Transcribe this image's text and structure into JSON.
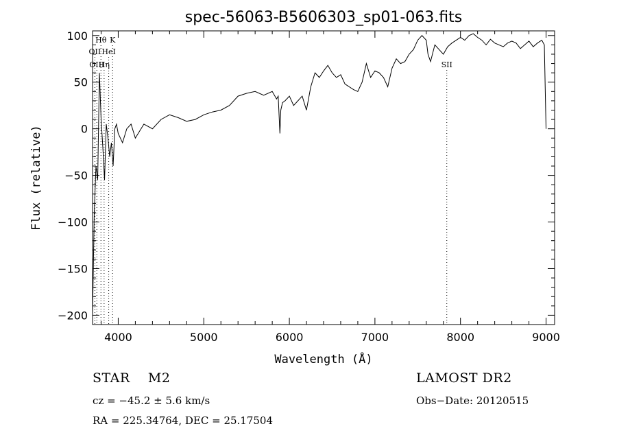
{
  "chart_data": {
    "type": "line",
    "title": "spec-56063-B5606303_sp01-063.fits",
    "xlabel": "Wavelength (Å)",
    "ylabel": "Flux (relative)",
    "xlim": [
      3700,
      9100
    ],
    "ylim": [
      -210,
      105
    ],
    "xticks": [
      4000,
      5000,
      6000,
      7000,
      8000,
      9000
    ],
    "yticks": [
      -200,
      -150,
      -100,
      -50,
      0,
      50,
      100
    ],
    "grid": false,
    "series": [
      {
        "x": [
          3700,
          3720,
          3740,
          3760,
          3780,
          3800,
          3820,
          3840,
          3860,
          3880,
          3900,
          3920,
          3940,
          3960,
          3980,
          4000,
          4050,
          4100,
          4150,
          4200,
          4300,
          4400,
          4500,
          4600,
          4700,
          4800,
          4900,
          5000,
          5100,
          5200,
          5300,
          5400,
          5500,
          5600,
          5700,
          5800,
          5850,
          5870,
          5890,
          5900,
          5920,
          5950,
          6000,
          6050,
          6100,
          6150,
          6200,
          6250,
          6300,
          6350,
          6400,
          6450,
          6500,
          6550,
          6600,
          6650,
          6700,
          6750,
          6800,
          6850,
          6900,
          6950,
          7000,
          7050,
          7100,
          7150,
          7200,
          7250,
          7300,
          7350,
          7400,
          7450,
          7500,
          7550,
          7600,
          7620,
          7650,
          7700,
          7750,
          7800,
          7850,
          7900,
          7950,
          8000,
          8050,
          8100,
          8150,
          8200,
          8250,
          8300,
          8350,
          8400,
          8450,
          8500,
          8550,
          8600,
          8650,
          8700,
          8750,
          8800,
          8850,
          8900,
          8950,
          8980,
          9000
        ],
        "y": [
          -200,
          -90,
          -40,
          -55,
          60,
          10,
          -20,
          -55,
          5,
          -10,
          -30,
          -15,
          -40,
          0,
          5,
          -5,
          -15,
          0,
          5,
          -10,
          5,
          0,
          10,
          15,
          12,
          8,
          10,
          15,
          18,
          20,
          25,
          35,
          38,
          40,
          36,
          40,
          32,
          35,
          -5,
          20,
          28,
          30,
          35,
          25,
          30,
          35,
          20,
          45,
          60,
          55,
          62,
          68,
          60,
          55,
          58,
          48,
          45,
          42,
          40,
          50,
          70,
          55,
          62,
          60,
          55,
          45,
          65,
          75,
          70,
          72,
          80,
          85,
          95,
          100,
          95,
          80,
          72,
          90,
          85,
          80,
          88,
          92,
          95,
          98,
          95,
          100,
          102,
          98,
          95,
          90,
          96,
          92,
          90,
          88,
          92,
          94,
          92,
          86,
          90,
          94,
          88,
          92,
          95,
          90,
          0
        ],
        "color": "#000000"
      }
    ],
    "line_markers": [
      {
        "label": "Hθ",
        "wavelength": 3798,
        "label_row": 0
      },
      {
        "label": "K",
        "wavelength": 3934,
        "label_row": 0
      },
      {
        "label": "OII",
        "wavelength": 3727,
        "label_row": 1
      },
      {
        "label": "HeI",
        "wavelength": 3889,
        "label_row": 1
      },
      {
        "label": "OIII",
        "wavelength": 3750,
        "label_row": 2
      },
      {
        "label": "Hη",
        "wavelength": 3835,
        "label_row": 2
      },
      {
        "label": "SII",
        "wavelength": 7840,
        "label_row": 3
      }
    ]
  },
  "info": {
    "object_class": "STAR",
    "subclass": "M2",
    "survey": "LAMOST DR2",
    "cz": "cz = −45.2 ± 5.6 km/s",
    "obs_date": "Obs−Date: 20120515",
    "coords": "RA = 225.34764, DEC =  25.17504"
  }
}
